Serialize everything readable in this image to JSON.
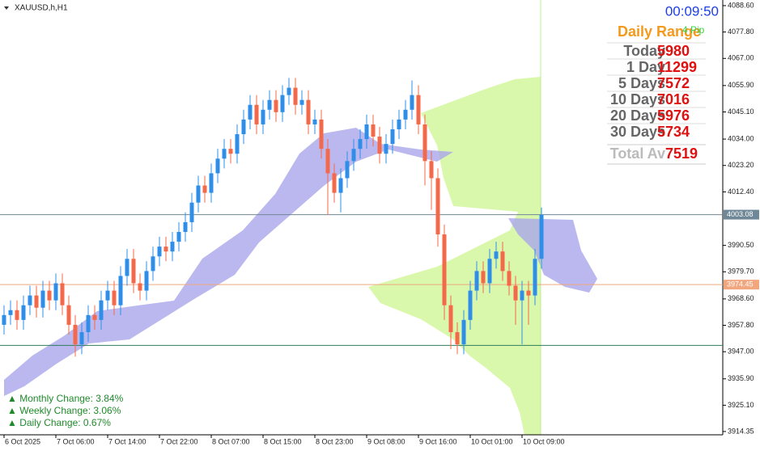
{
  "chart_data": {
    "type": "candlestick",
    "title": "XAUUSD,h,H1",
    "categories": [
      "6 Oct 2025",
      null,
      null,
      null,
      null,
      null,
      null,
      null,
      "7 Oct 06:00",
      null,
      null,
      null,
      null,
      null,
      null,
      null,
      "7 Oct 14:00",
      null,
      null,
      null,
      null,
      null,
      null,
      null,
      "7 Oct 22:00",
      null,
      null,
      null,
      null,
      null,
      null,
      null,
      "8 Oct 07:00",
      null,
      null,
      null,
      null,
      null,
      null,
      null,
      "8 Oct 15:00",
      null,
      null,
      null,
      null,
      null,
      null,
      null,
      "8 Oct 23:00",
      null,
      null,
      null,
      null,
      null,
      null,
      null,
      "9 Oct 08:00",
      null,
      null,
      null,
      null,
      null,
      null,
      null,
      "9 Oct 16:00",
      null,
      null,
      null,
      null,
      null,
      null,
      null,
      "10 Oct 01:00",
      null,
      null,
      null,
      null,
      null,
      null,
      null,
      "10 Oct 09:00",
      null,
      null,
      null
    ],
    "open": [
      3958,
      3962,
      3964,
      3960,
      3966,
      3970,
      3965,
      3972,
      3968,
      3975,
      3966,
      3958,
      3950,
      3955,
      3962,
      3960,
      3968,
      3972,
      3966,
      3978,
      3985,
      3975,
      3972,
      3980,
      3986,
      3990,
      3988,
      3992,
      3996,
      4000,
      4008,
      4015,
      4012,
      4020,
      4026,
      4030,
      4028,
      4036,
      4042,
      4048,
      4040,
      4046,
      4050,
      4045,
      4052,
      4055,
      4048,
      4050,
      4040,
      4042,
      4030,
      4020,
      4012,
      4018,
      4025,
      4030,
      4034,
      4040,
      4035,
      4028,
      4032,
      4038,
      4042,
      4046,
      4052,
      4040,
      4025,
      4018,
      3995,
      3966,
      3955,
      3950,
      3960,
      3972,
      3980,
      3975,
      3985,
      3988,
      3980,
      3974,
      3968,
      3972,
      3970,
      3985
    ],
    "high": [
      3966,
      3968,
      3968,
      3970,
      3974,
      3974,
      3976,
      3976,
      3979,
      3979,
      3970,
      3962,
      3959,
      3966,
      3966,
      3972,
      3976,
      3976,
      3982,
      3989,
      3989,
      3979,
      3984,
      3990,
      3994,
      3994,
      3996,
      4000,
      4004,
      4012,
      4019,
      4019,
      4024,
      4030,
      4034,
      4034,
      4040,
      4046,
      4052,
      4052,
      4050,
      4054,
      4054,
      4056,
      4059,
      4059,
      4054,
      4054,
      4046,
      4046,
      4034,
      4024,
      4022,
      4029,
      4034,
      4038,
      4044,
      4044,
      4039,
      4036,
      4042,
      4046,
      4050,
      4058,
      4056,
      4044,
      4029,
      4022,
      3999,
      3970,
      3959,
      3964,
      3976,
      3984,
      3984,
      3989,
      3992,
      3992,
      3984,
      3978,
      3976,
      3976,
      3989,
      4006
    ],
    "low": [
      3954,
      3958,
      3956,
      3956,
      3962,
      3961,
      3961,
      3964,
      3964,
      3962,
      3954,
      3945,
      3946,
      3951,
      3956,
      3956,
      3964,
      3962,
      3962,
      3974,
      3971,
      3968,
      3968,
      3976,
      3982,
      3984,
      3984,
      3988,
      3992,
      3996,
      4004,
      4008,
      4008,
      4016,
      4022,
      4024,
      4024,
      4032,
      4038,
      4036,
      4036,
      4042,
      4041,
      4041,
      4048,
      4044,
      4044,
      4036,
      4036,
      4026,
      4003,
      4008,
      4004,
      4014,
      4021,
      4026,
      4030,
      4031,
      4024,
      4024,
      4028,
      4034,
      4038,
      4042,
      4036,
      4015,
      4005,
      3990,
      3960,
      3948,
      3946,
      3946,
      3956,
      3968,
      3971,
      3971,
      3981,
      3976,
      3970,
      3958,
      3950,
      3958,
      3966,
      3981
    ],
    "close": [
      3962,
      3964,
      3960,
      3966,
      3970,
      3965,
      3972,
      3968,
      3975,
      3966,
      3958,
      3950,
      3955,
      3962,
      3960,
      3968,
      3972,
      3966,
      3978,
      3985,
      3975,
      3972,
      3980,
      3986,
      3990,
      3988,
      3992,
      3996,
      4000,
      4008,
      4015,
      4012,
      4020,
      4026,
      4030,
      4028,
      4036,
      4042,
      4048,
      4040,
      4046,
      4050,
      4045,
      4052,
      4055,
      4048,
      4050,
      4040,
      4042,
      4030,
      4020,
      4012,
      4018,
      4025,
      4030,
      4034,
      4040,
      4035,
      4028,
      4032,
      4038,
      4042,
      4046,
      4052,
      4040,
      4025,
      4018,
      3995,
      3966,
      3955,
      3950,
      3960,
      3972,
      3980,
      3975,
      3985,
      3988,
      3980,
      3974,
      3968,
      3972,
      3970,
      3985,
      4003
    ],
    "up_color": "#2f8fe8",
    "down_color": "#f4694a",
    "ylim": [
      3913.0,
      4090.9
    ],
    "yticks": [
      {
        "value": 4088.6,
        "label": "4088.60"
      },
      {
        "value": 4077.8,
        "label": "4077.80"
      },
      {
        "value": 4067,
        "label": "4067.00"
      },
      {
        "value": 4055.9,
        "label": "4055.90"
      },
      {
        "value": 4045.1,
        "label": "4045.10"
      },
      {
        "value": 4034,
        "label": "4034.00"
      },
      {
        "value": 4023.2,
        "label": "4023.20"
      },
      {
        "value": 4012.4,
        "label": "4012.40"
      },
      {
        "value": 3990.5,
        "label": "3990.50"
      },
      {
        "value": 3979.7,
        "label": "3979.70"
      },
      {
        "value": 3968.6,
        "label": "3968.60"
      },
      {
        "value": 3957.8,
        "label": "3957.80"
      },
      {
        "value": 3947,
        "label": "3947.00"
      },
      {
        "value": 3935.9,
        "label": "3935.90"
      },
      {
        "value": 3925.1,
        "label": "3925.10"
      },
      {
        "value": 3914.35,
        "label": "3914.35"
      }
    ],
    "price_lines": [
      {
        "value": 4003.08,
        "color": "#6f8796"
      },
      {
        "value": 3974.45,
        "color": "#f2a67e"
      }
    ],
    "levels": [
      {
        "value": 3949.6,
        "color": "#2e7d5b"
      }
    ],
    "info": {
      "clock": "00:09:50",
      "range_title": "Daily Range",
      "pip": "4 Pip",
      "rows": [
        {
          "label": "Today",
          "value": 5980
        },
        {
          "label": "1 Day",
          "value": 11299
        },
        {
          "label": "5 Days",
          "value": 7572
        },
        {
          "label": "10 Days",
          "value": 7016
        },
        {
          "label": "20 Days",
          "value": 5976
        },
        {
          "label": "30 Days",
          "value": 5734
        }
      ],
      "total": {
        "label": "Total Av",
        "value": 7519
      }
    },
    "changes": [
      "▲ Monthly Change: 3.84%",
      "▲ Weekly Change: 3.06%",
      "▲ Daily Change: 0.67%"
    ]
  }
}
